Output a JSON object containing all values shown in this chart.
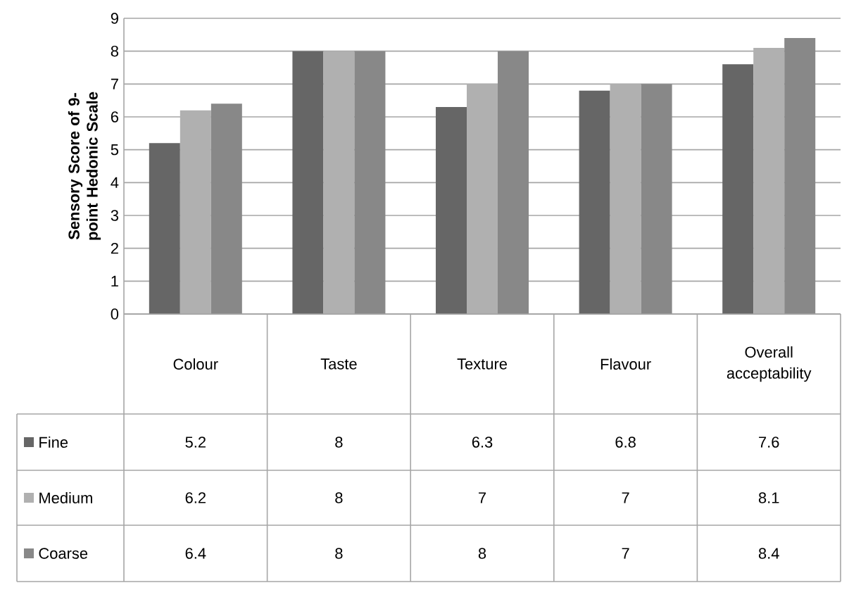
{
  "chart_data": {
    "type": "bar",
    "ylabel": "Sensory Score of 9-point Hedonic Scale",
    "categories": [
      "Colour",
      "Taste",
      "Texture",
      "Flavour",
      "Overall acceptability"
    ],
    "series": [
      {
        "name": "Fine",
        "color": "#666666",
        "values": [
          5.2,
          8,
          6.3,
          6.8,
          7.6
        ]
      },
      {
        "name": "Medium",
        "color": "#b0b0b0",
        "values": [
          6.2,
          8,
          7,
          7,
          8.1
        ]
      },
      {
        "name": "Coarse",
        "color": "#888888",
        "values": [
          6.4,
          8,
          8,
          7,
          8.4
        ]
      }
    ],
    "ylim": [
      0,
      9
    ],
    "yticks": [
      0,
      1,
      2,
      3,
      4,
      5,
      6,
      7,
      8,
      9
    ],
    "grid": "y",
    "legend": "bottom",
    "data_labels": true
  }
}
